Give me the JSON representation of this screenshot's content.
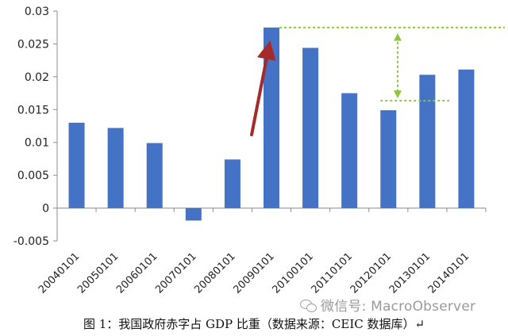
{
  "chart_data": {
    "type": "bar",
    "categories": [
      "20040101",
      "20050101",
      "20060101",
      "20070101",
      "20080101",
      "20090101",
      "20100101",
      "20110101",
      "20120101",
      "20130101",
      "20140101"
    ],
    "values": [
      0.013,
      0.0122,
      0.0099,
      -0.0019,
      0.0074,
      0.0275,
      0.0244,
      0.0175,
      0.0149,
      0.0203,
      0.0211
    ],
    "yticks": [
      "0.03",
      "0.025",
      "0.02",
      "0.015",
      "0.01",
      "0.005",
      "0",
      "-0.005"
    ],
    "ylim": [
      -0.005,
      0.03
    ],
    "bar_color": "#4472C4",
    "grid": false,
    "legend": "none",
    "annotations": {
      "arrow_color": "#A52A2A",
      "dashed_line_color": "#8DC63F"
    }
  },
  "caption": "图 1：我国政府赤字占 GDP 比重（数据来源：CEIC 数据库）↵",
  "watermark": "微信号: MacroObserver"
}
